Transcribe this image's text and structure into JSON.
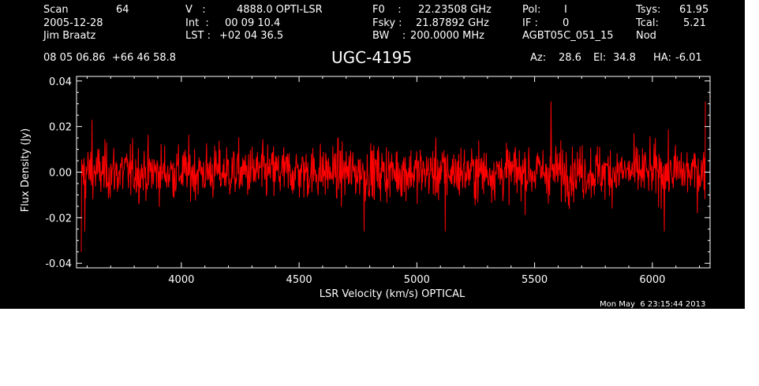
{
  "header": {
    "scan_label": "Scan",
    "scan_value": "64",
    "date": "2005-12-28",
    "observer": "Jim Braatz",
    "v_label": "V   :",
    "v_value": "4888.0 OPTI-LSR",
    "int_label": "Int  :",
    "int_value": "00 09 10.4",
    "lst_label": "LST :",
    "lst_value": "+02 04 36.5",
    "f0_label": "F0    :",
    "f0_value": "22.23508 GHz",
    "fsky_label": "Fsky :",
    "fsky_value": "21.87892 GHz",
    "bw_label": "BW    :",
    "bw_value": "200.0000 MHz",
    "pol_label": "Pol:",
    "pol_value": "I",
    "if_label": "IF :",
    "if_value": "0",
    "project": "AGBT05C_051_15",
    "tsys_label": "Tsys:",
    "tsys_value": "61.95",
    "tcal_label": "Tcal:",
    "tcal_value": "5.21",
    "mode": "Nod",
    "coords": "08 05 06.86  +66 46 58.8",
    "source": "UGC-4195",
    "az_label": "Az:",
    "az_value": "28.6",
    "el_label": "El:",
    "el_value": "34.8",
    "ha_label": "HA:",
    "ha_value": "-6.01",
    "timestamp": "Mon May  6 23:15:44 2013"
  },
  "colors": {
    "background": "#000000",
    "axes": "#ffffff",
    "trace": "#ff0000",
    "page": "#ffffff"
  },
  "chart_data": {
    "type": "line",
    "title": "UGC-4195",
    "xlabel": "LSR Velocity (km/s) OPTICAL",
    "ylabel": "Flux Density (Jy)",
    "xlim": [
      3555,
      6245
    ],
    "ylim": [
      -0.042,
      0.042
    ],
    "x_ticks": [
      "4000",
      "4500",
      "5000",
      "5500",
      "6000"
    ],
    "x_tick_values": [
      4000,
      4500,
      5000,
      5500,
      6000
    ],
    "y_ticks": [
      "0.04",
      "0.02",
      "0.00",
      "-0.02",
      "-0.04"
    ],
    "y_tick_values": [
      0.04,
      0.02,
      0.0,
      -0.02,
      -0.04
    ],
    "grid": false,
    "series": [
      {
        "color": "#ff0000",
        "x_start": 3575,
        "x_end": 6225,
        "n_points": 1400,
        "noise_rms": 0.0085,
        "features": [
          {
            "x": 3575,
            "y": -0.035
          },
          {
            "x": 3590,
            "y": -0.026
          },
          {
            "x": 3620,
            "y": 0.023
          },
          {
            "x": 4775,
            "y": -0.026
          },
          {
            "x": 5120,
            "y": -0.026
          },
          {
            "x": 5570,
            "y": 0.031
          },
          {
            "x": 6050,
            "y": -0.026
          },
          {
            "x": 6225,
            "y": 0.031
          }
        ]
      }
    ]
  }
}
